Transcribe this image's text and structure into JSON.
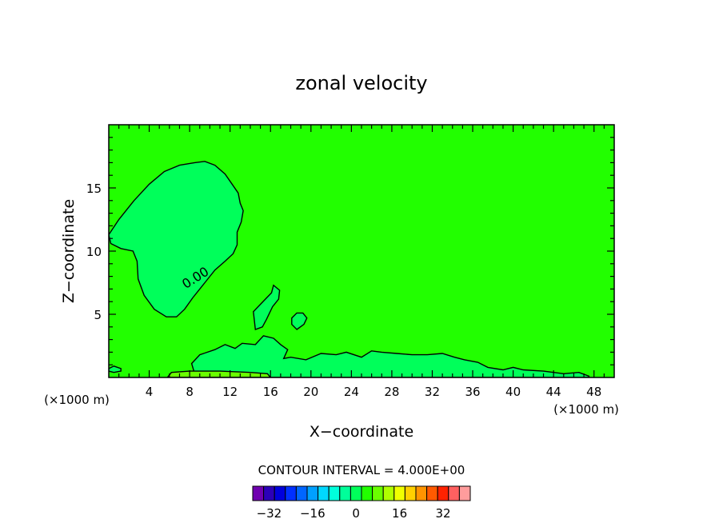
{
  "chart_data": {
    "type": "heatmap",
    "title": "zonal velocity",
    "xlabel": "X−coordinate",
    "ylabel": "Z−coordinate",
    "x_unit_left": "(×1000 m)",
    "x_unit_right": "(×1000 m)",
    "xlim": [
      0,
      50
    ],
    "ylim": [
      0,
      20
    ],
    "x_ticks": [
      4,
      8,
      12,
      16,
      20,
      24,
      28,
      32,
      36,
      40,
      44,
      48
    ],
    "x_tick_labels": [
      "4",
      "8",
      "12",
      "16",
      "20",
      "24",
      "28",
      "32",
      "36",
      "40",
      "44",
      "48"
    ],
    "y_ticks": [
      5,
      10,
      15
    ],
    "y_tick_labels": [
      "5",
      "10",
      "15"
    ],
    "background_value": 2,
    "contour_label": "0.00",
    "contour_label_at": [
      8.8,
      7.6
    ],
    "contours": [
      {
        "level": 0,
        "fill_value": -2,
        "points": [
          [
            0,
            11.3
          ],
          [
            1,
            12.5
          ],
          [
            2.5,
            14
          ],
          [
            4,
            15.3
          ],
          [
            5.5,
            16.3
          ],
          [
            7,
            16.8
          ],
          [
            8.5,
            17
          ],
          [
            9.5,
            17.1
          ],
          [
            10.5,
            16.8
          ],
          [
            11.5,
            16.1
          ],
          [
            12.2,
            15.3
          ],
          [
            12.8,
            14.6
          ],
          [
            13,
            13.8
          ],
          [
            13.3,
            13.2
          ],
          [
            13.1,
            12.3
          ],
          [
            12.7,
            11.5
          ],
          [
            12.7,
            10.5
          ],
          [
            12.3,
            9.8
          ],
          [
            11.5,
            9.2
          ],
          [
            10.5,
            8.5
          ],
          [
            9.5,
            7.5
          ],
          [
            8.3,
            6.3
          ],
          [
            7.5,
            5.4
          ],
          [
            6.7,
            4.8
          ],
          [
            5.7,
            4.8
          ],
          [
            4.5,
            5.4
          ],
          [
            3.5,
            6.5
          ],
          [
            2.9,
            7.8
          ],
          [
            2.8,
            9.2
          ],
          [
            2.4,
            10
          ],
          [
            1.2,
            10.2
          ],
          [
            0.2,
            10.6
          ]
        ]
      },
      {
        "level": 0,
        "fill_value": -2,
        "points": [
          [
            8.5,
            0.3
          ],
          [
            8.2,
            1.1
          ],
          [
            9,
            1.8
          ],
          [
            10.5,
            2.2
          ],
          [
            11.5,
            2.6
          ],
          [
            12.5,
            2.3
          ],
          [
            13.2,
            2.7
          ],
          [
            14.5,
            2.6
          ],
          [
            15.3,
            3.3
          ],
          [
            16.3,
            3.1
          ],
          [
            17,
            2.6
          ],
          [
            17.7,
            2.2
          ],
          [
            17.3,
            1.5
          ],
          [
            18,
            1.6
          ],
          [
            19.5,
            1.4
          ],
          [
            21,
            1.9
          ],
          [
            22.5,
            1.8
          ],
          [
            23.5,
            2
          ],
          [
            25,
            1.6
          ],
          [
            26,
            2.1
          ],
          [
            27,
            2
          ],
          [
            28.5,
            1.9
          ],
          [
            30,
            1.8
          ],
          [
            31.5,
            1.8
          ],
          [
            33,
            1.9
          ],
          [
            34.2,
            1.6
          ],
          [
            35.2,
            1.4
          ],
          [
            36.5,
            1.2
          ],
          [
            37.5,
            0.8
          ],
          [
            39,
            0.6
          ],
          [
            40,
            0.8
          ],
          [
            41,
            0.6
          ],
          [
            43,
            0.5
          ],
          [
            45,
            0.3
          ],
          [
            46.5,
            0.4
          ],
          [
            47.5,
            0.1
          ],
          [
            47.5,
            0
          ],
          [
            8.5,
            0
          ]
        ]
      },
      {
        "level": 0,
        "fill_value": -2,
        "points": [
          [
            14.5,
            3.8
          ],
          [
            14.3,
            5.2
          ],
          [
            14.9,
            5.7
          ],
          [
            15.5,
            6.2
          ],
          [
            16.1,
            6.7
          ],
          [
            16.3,
            7.3
          ],
          [
            16.9,
            6.9
          ],
          [
            16.8,
            6.2
          ],
          [
            16.2,
            5.6
          ],
          [
            15.6,
            4.6
          ],
          [
            15.2,
            4
          ]
        ]
      },
      {
        "level": 0,
        "fill_value": -2,
        "points": [
          [
            18.6,
            3.8
          ],
          [
            19.3,
            4.2
          ],
          [
            19.6,
            4.7
          ],
          [
            19.2,
            5.1
          ],
          [
            18.6,
            5.1
          ],
          [
            18.1,
            4.7
          ],
          [
            18.1,
            4.2
          ]
        ]
      },
      {
        "level": 0,
        "fill_value": -2,
        "points": [
          [
            0,
            0.7
          ],
          [
            0.5,
            0.9
          ],
          [
            1.2,
            0.7
          ],
          [
            1.2,
            0.5
          ],
          [
            0.5,
            0.4
          ],
          [
            0,
            0.5
          ]
        ]
      },
      {
        "level": 8,
        "fill_value": 6,
        "points": [
          [
            5.8,
            0
          ],
          [
            6.2,
            0.4
          ],
          [
            8,
            0.5
          ],
          [
            11,
            0.5
          ],
          [
            14,
            0.4
          ],
          [
            15.7,
            0.3
          ],
          [
            16,
            0
          ],
          [
            5.8,
            0
          ]
        ]
      }
    ],
    "colorbar": {
      "label": "CONTOUR INTERVAL = 4.000E+00",
      "tick_values": [
        -32,
        -16,
        0,
        16,
        32
      ],
      "tick_labels": [
        "−32",
        "−16",
        "0",
        "16",
        "32"
      ],
      "levels": [
        -36,
        -32,
        -28,
        -24,
        -20,
        -16,
        -12,
        -8,
        -4,
        0,
        4,
        8,
        12,
        16,
        20,
        24,
        28,
        32,
        36
      ],
      "colors": [
        "#7000b0",
        "#2c00b8",
        "#0000dc",
        "#0030ff",
        "#0066ff",
        "#00a0ff",
        "#00d8ff",
        "#00ffdc",
        "#00ff9a",
        "#00ff5a",
        "#22ff00",
        "#6aff00",
        "#b0ff00",
        "#f0ff00",
        "#ffd000",
        "#ff9400",
        "#ff5a00",
        "#ff2200",
        "#ff6060",
        "#ff9c9c"
      ]
    }
  }
}
